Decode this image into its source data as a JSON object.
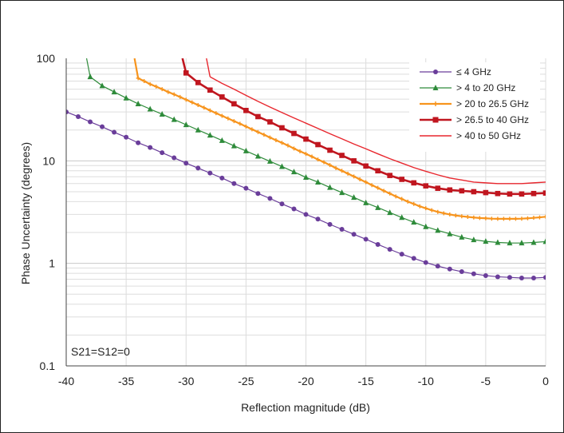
{
  "chart_data": {
    "type": "line",
    "title": "",
    "xlabel": "Reflection magnitude (dB)",
    "ylabel": "Phase Uncertainty (degrees)",
    "xlim": [
      -40,
      0
    ],
    "ylim": [
      0.1,
      100
    ],
    "yscale": "log",
    "grid": true,
    "legend_position": "top-right",
    "x_ticks": [
      -40,
      -35,
      -30,
      -25,
      -20,
      -15,
      -10,
      -5,
      0
    ],
    "x_tick_labels": [
      "-40",
      "-35",
      "-30",
      "-25",
      "-20",
      "-15",
      "-10",
      "-5",
      "0"
    ],
    "y_ticks": [
      0.1,
      1,
      10,
      100
    ],
    "y_tick_labels": [
      "0.1",
      "1",
      "10",
      "100"
    ],
    "annotation": "S21=S12=0",
    "series": [
      {
        "name": "≤ 4 GHz",
        "color": "#6a3d9a",
        "marker": "circle",
        "line_width": 1.2,
        "x": [
          -40,
          -39,
          -38,
          -37,
          -36,
          -35,
          -34,
          -33,
          -32,
          -31,
          -30,
          -29,
          -28,
          -27,
          -26,
          -25,
          -24,
          -23,
          -22,
          -21,
          -20,
          -19,
          -18,
          -17,
          -16,
          -15,
          -14,
          -13,
          -12,
          -11,
          -10,
          -9,
          -8,
          -7,
          -6,
          -5,
          -4,
          -3,
          -2,
          -1,
          0
        ],
        "y": [
          30,
          27,
          24,
          21.5,
          19,
          17,
          15,
          13.5,
          12,
          10.7,
          9.5,
          8.5,
          7.6,
          6.8,
          6.0,
          5.4,
          4.8,
          4.3,
          3.8,
          3.4,
          3.0,
          2.7,
          2.4,
          2.15,
          1.92,
          1.72,
          1.53,
          1.37,
          1.23,
          1.12,
          1.02,
          0.94,
          0.88,
          0.83,
          0.79,
          0.76,
          0.74,
          0.73,
          0.72,
          0.72,
          0.73
        ]
      },
      {
        "name": "> 4 to 20 GHz",
        "color": "#2e8b3a",
        "marker": "triangle",
        "line_width": 1.2,
        "x": [
          -38,
          -37,
          -36,
          -35,
          -34,
          -33,
          -32,
          -31,
          -30,
          -29,
          -28,
          -27,
          -26,
          -25,
          -24,
          -23,
          -22,
          -21,
          -20,
          -19,
          -18,
          -17,
          -16,
          -15,
          -14,
          -13,
          -12,
          -11,
          -10,
          -9,
          -8,
          -7,
          -6,
          -5,
          -4,
          -3,
          -2,
          -1,
          0
        ],
        "y": [
          66,
          54,
          47,
          41,
          36,
          32,
          28.5,
          25.3,
          22.5,
          20,
          17.8,
          15.8,
          14,
          12.5,
          11.1,
          9.9,
          8.8,
          7.8,
          6.9,
          6.2,
          5.5,
          4.9,
          4.4,
          3.9,
          3.5,
          3.13,
          2.8,
          2.52,
          2.28,
          2.1,
          1.94,
          1.8,
          1.7,
          1.64,
          1.6,
          1.58,
          1.58,
          1.6,
          1.63
        ]
      },
      {
        "name": "> 20 to 26.5 GHz",
        "color": "#f7941d",
        "marker": "plus",
        "line_width": 2.2,
        "x": [
          -34,
          -33.5,
          -33,
          -32.5,
          -32,
          -31.5,
          -31,
          -30.5,
          -30,
          -29.5,
          -29,
          -28.5,
          -28,
          -27.5,
          -27,
          -26.5,
          -26,
          -25.5,
          -25,
          -24.5,
          -24,
          -23.5,
          -23,
          -22.5,
          -22,
          -21.5,
          -21,
          -20.5,
          -20,
          -19.5,
          -19,
          -18.5,
          -18,
          -17.5,
          -17,
          -16.5,
          -16,
          -15.5,
          -15,
          -14.5,
          -14,
          -13.5,
          -13,
          -12.5,
          -12,
          -11.5,
          -11,
          -10.5,
          -10,
          -9.5,
          -9,
          -8.5,
          -8,
          -7.5,
          -7,
          -6.5,
          -6,
          -5.5,
          -5,
          -4.5,
          -4,
          -3.5,
          -3,
          -2.5,
          -2,
          -1.5,
          -1,
          -0.5,
          0
        ],
        "y": [
          64,
          60,
          56,
          53,
          50,
          47,
          44.5,
          42,
          39.5,
          37.2,
          35,
          33,
          31,
          29.2,
          27.5,
          25.9,
          24.4,
          23,
          21.6,
          20.3,
          19.1,
          18,
          16.9,
          15.9,
          15,
          14.1,
          13.2,
          12.4,
          11.7,
          11,
          10.3,
          9.7,
          9.1,
          8.5,
          8,
          7.5,
          7.05,
          6.6,
          6.2,
          5.8,
          5.45,
          5.1,
          4.8,
          4.5,
          4.25,
          4,
          3.8,
          3.6,
          3.45,
          3.3,
          3.18,
          3.08,
          3,
          2.93,
          2.88,
          2.84,
          2.8,
          2.77,
          2.75,
          2.73,
          2.72,
          2.72,
          2.72,
          2.72,
          2.73,
          2.75,
          2.78,
          2.81,
          2.85
        ]
      },
      {
        "name": "> 26.5 to 40 GHz",
        "color": "#c0161f",
        "marker": "square",
        "line_width": 2.6,
        "x": [
          -30,
          -29,
          -28,
          -27,
          -26,
          -25,
          -24,
          -23,
          -22,
          -21,
          -20,
          -19,
          -18,
          -17,
          -16,
          -15,
          -14,
          -13,
          -12,
          -11,
          -10,
          -9,
          -8,
          -7,
          -6,
          -5,
          -4,
          -3,
          -2,
          -1,
          0
        ],
        "y": [
          72,
          58,
          49,
          42,
          36,
          31,
          27,
          24,
          21,
          18.5,
          16.3,
          14.4,
          12.7,
          11.3,
          10,
          8.9,
          8,
          7.2,
          6.6,
          6.1,
          5.7,
          5.4,
          5.2,
          5.1,
          5.0,
          4.9,
          4.8,
          4.75,
          4.75,
          4.8,
          4.85
        ]
      },
      {
        "name": "> 40 to 50 GHz",
        "color": "#e8272e",
        "marker": "none",
        "line_width": 1.4,
        "x": [
          -28,
          -27,
          -26,
          -25,
          -24,
          -23,
          -22,
          -21,
          -20,
          -19,
          -18,
          -17,
          -16,
          -15,
          -14,
          -13,
          -12,
          -11,
          -10,
          -9,
          -8,
          -7,
          -6,
          -5,
          -4,
          -3,
          -2,
          -1,
          0
        ],
        "y": [
          66,
          57,
          50,
          43.5,
          38,
          33.5,
          29.6,
          26.2,
          23.3,
          20.7,
          18.4,
          16.4,
          14.6,
          13.1,
          11.7,
          10.5,
          9.5,
          8.6,
          7.9,
          7.3,
          6.8,
          6.5,
          6.2,
          6.1,
          6.0,
          6.0,
          6.0,
          6.1,
          6.2
        ]
      }
    ],
    "steep_segments": [
      {
        "series": 1,
        "x": [
          -38.3,
          -38
        ],
        "y": [
          100,
          66
        ]
      },
      {
        "series": 2,
        "x": [
          -34.3,
          -34
        ],
        "y": [
          100,
          64
        ]
      },
      {
        "series": 3,
        "x": [
          -30.3,
          -30
        ],
        "y": [
          100,
          72
        ]
      },
      {
        "series": 4,
        "x": [
          -28.3,
          -28
        ],
        "y": [
          100,
          66
        ]
      }
    ]
  }
}
